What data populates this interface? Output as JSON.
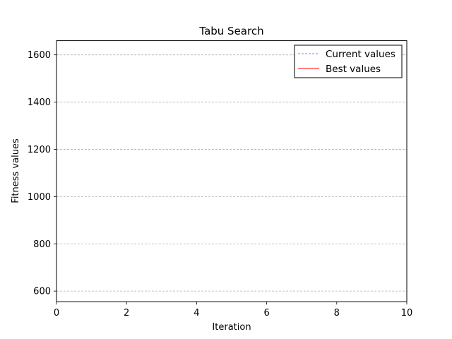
{
  "chart_data": {
    "type": "line",
    "title": "Tabu Search",
    "xlabel": "Iteration",
    "ylabel": "Fitness values",
    "xlim": [
      0,
      10
    ],
    "ylim": [
      555,
      1660
    ],
    "xticks": [
      0,
      2,
      4,
      6,
      8,
      10
    ],
    "yticks": [
      600,
      800,
      1000,
      1200,
      1400,
      1600
    ],
    "grid": "y-dashed",
    "legend_placement": "top-right",
    "series": [
      {
        "name": "Current values",
        "color": "#8080ff",
        "style": "dashed",
        "x": [],
        "y": []
      },
      {
        "name": "Best values",
        "color": "#ff0000",
        "style": "solid",
        "x": [],
        "y": []
      }
    ]
  }
}
